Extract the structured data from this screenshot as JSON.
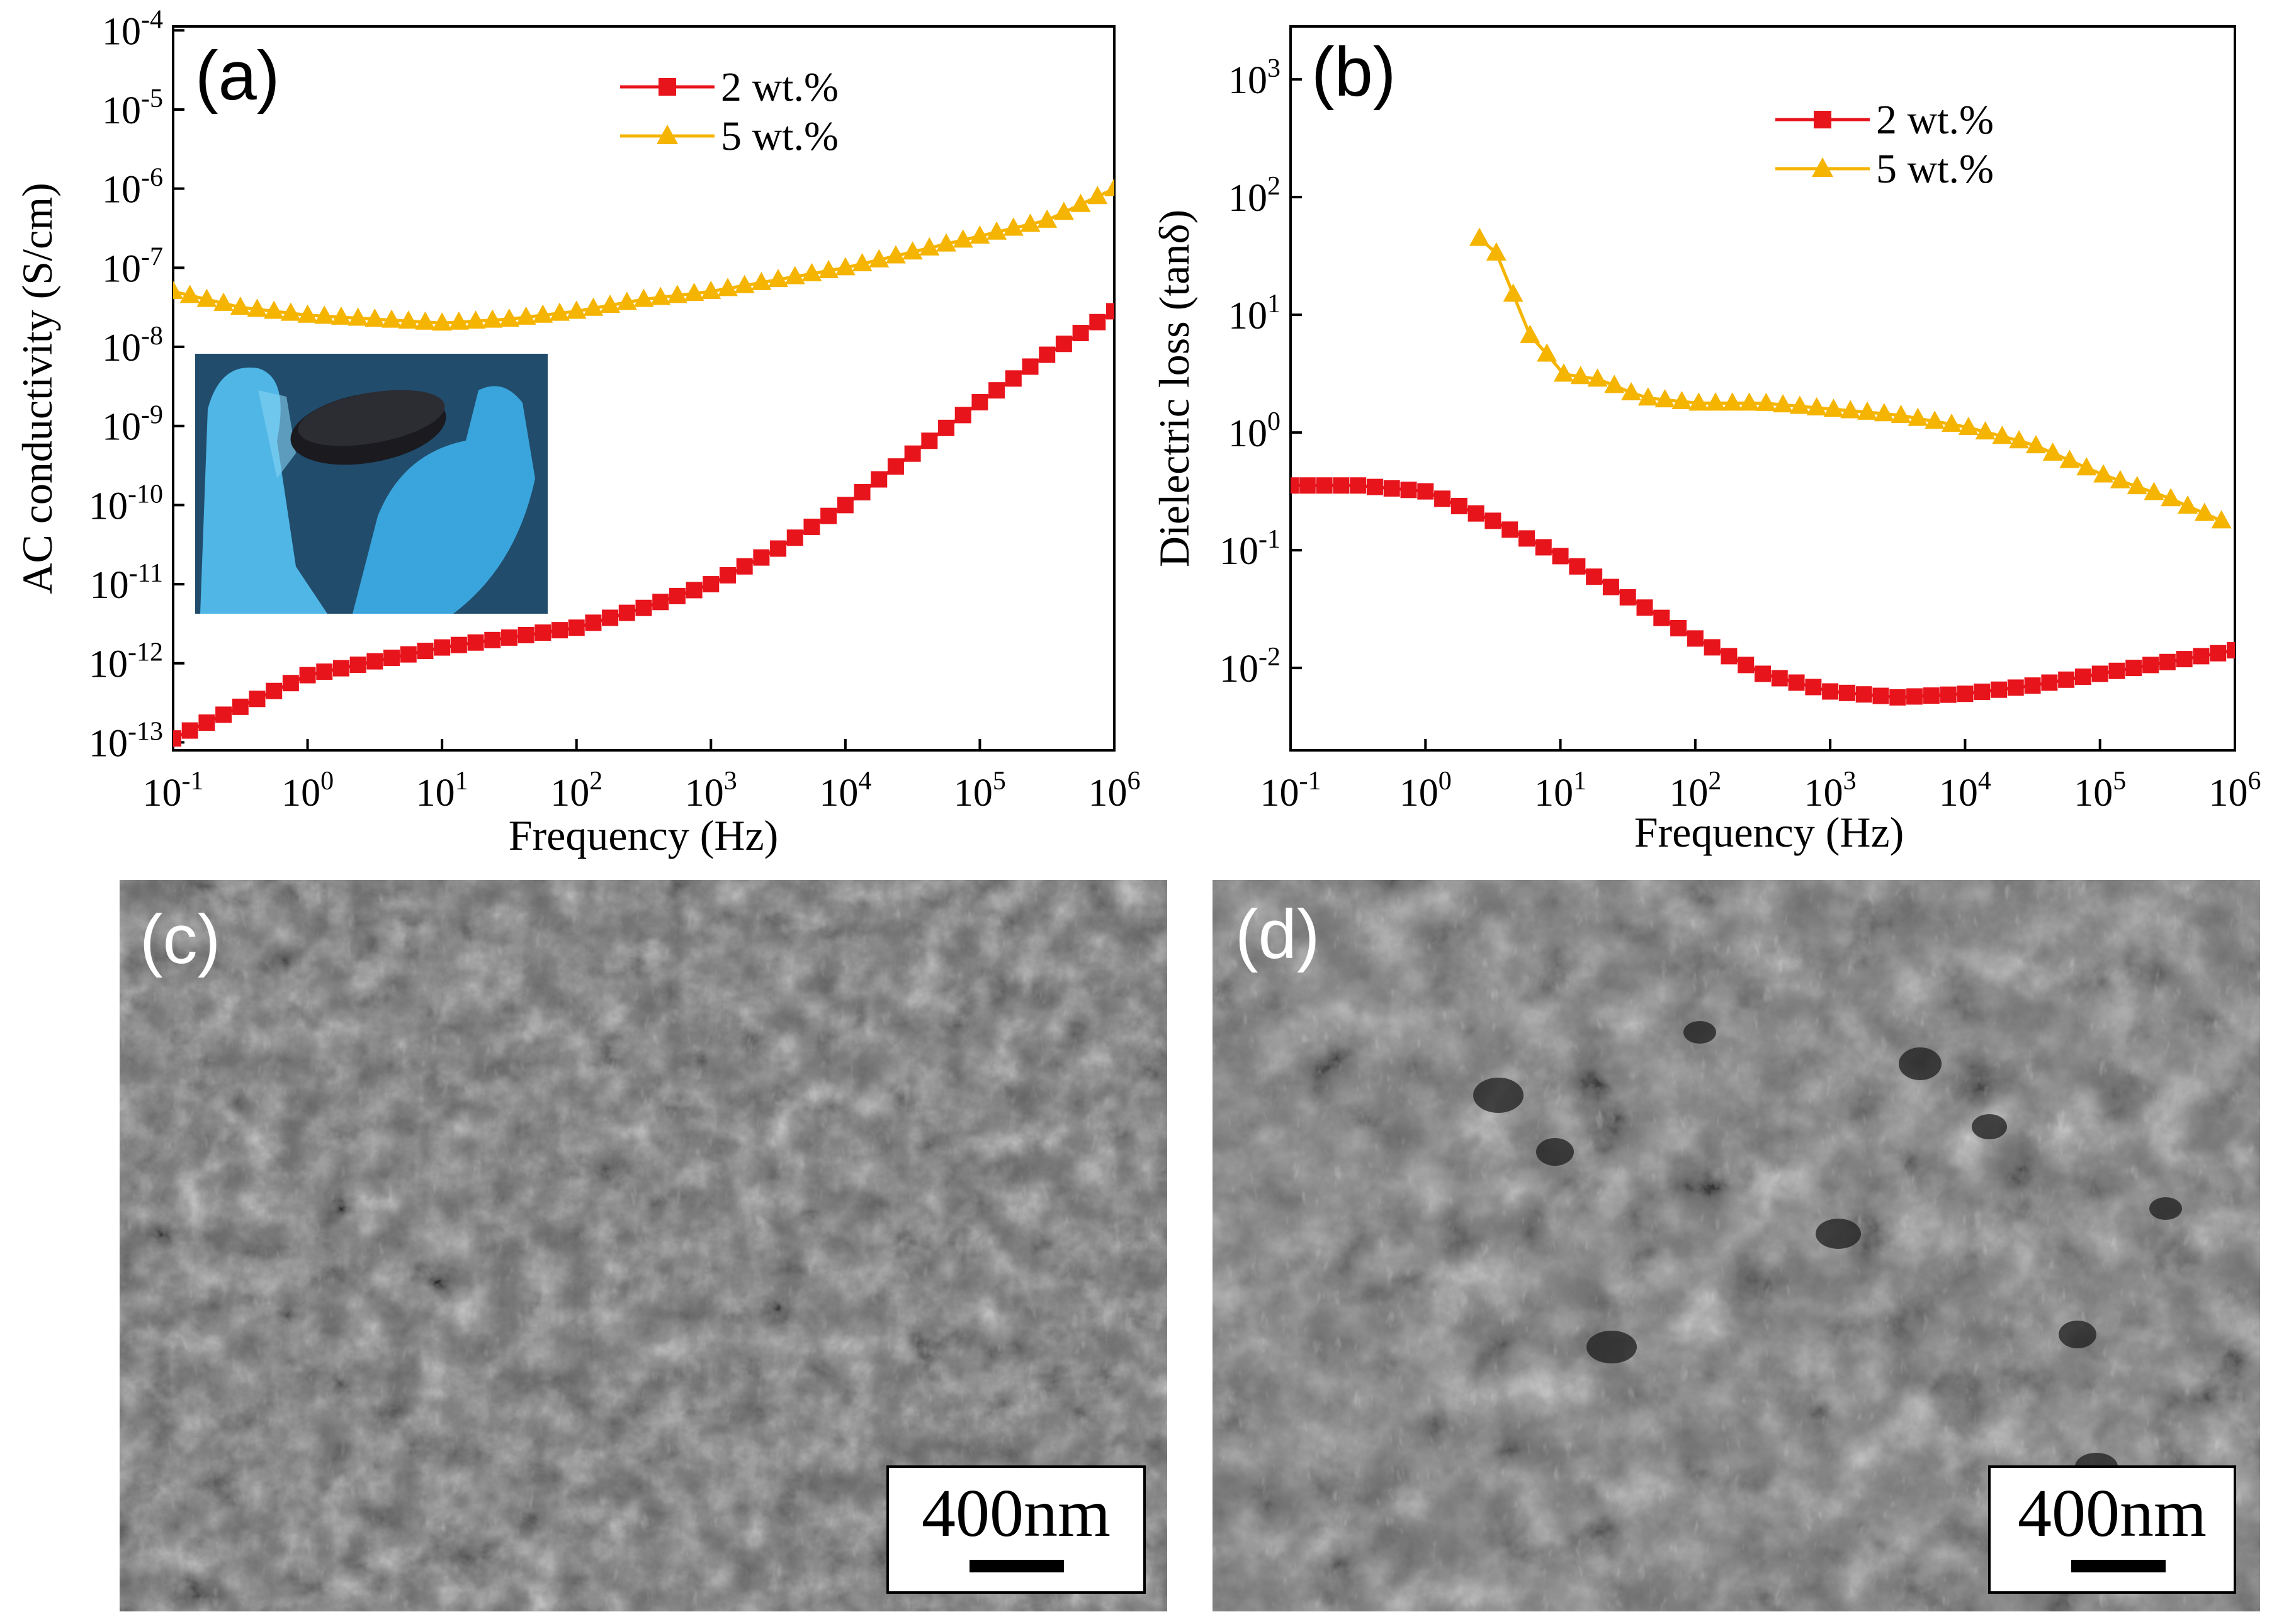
{
  "chart_data": [
    {
      "panel": "(a)",
      "type": "line",
      "xscale": "log",
      "yscale": "log",
      "xlabel": "Frequency (Hz)",
      "ylabel": "AC conductivity (S/cm)",
      "x_ticks": [
        -1,
        0,
        1,
        2,
        3,
        4,
        5,
        6
      ],
      "y_ticks": [
        -13,
        -12,
        -11,
        -10,
        -9,
        -8,
        -7,
        -6,
        -5,
        -4
      ],
      "xlim_exp": [
        -1,
        6
      ],
      "ylim_exp": [
        -13.1,
        -3.95
      ],
      "legend_position": "top-center",
      "series": [
        {
          "name": "2 wt.%",
          "color": "#e8141c",
          "marker": "square",
          "x_log": [
            -1,
            0,
            1,
            2,
            2.5,
            3,
            3.5,
            4,
            4.5,
            5,
            5.5,
            6
          ],
          "y_log": [
            -12.95,
            -12.15,
            -11.8,
            -11.55,
            -11.3,
            -11.0,
            -10.55,
            -10.0,
            -9.35,
            -8.7,
            -8.1,
            -7.55
          ]
        },
        {
          "name": "5 wt.%",
          "color": "#f5b400",
          "marker": "triangle",
          "x_log": [
            -1,
            -0.5,
            0,
            0.5,
            1,
            1.5,
            2,
            2.5,
            3,
            3.5,
            4,
            4.5,
            5,
            5.5,
            6
          ],
          "y_log": [
            -7.3,
            -7.5,
            -7.6,
            -7.65,
            -7.7,
            -7.65,
            -7.55,
            -7.4,
            -7.3,
            -7.15,
            -7.0,
            -6.8,
            -6.6,
            -6.4,
            -6.0
          ]
        }
      ]
    },
    {
      "panel": "(b)",
      "type": "line",
      "xscale": "log",
      "yscale": "log",
      "xlabel": "Frequency (Hz)",
      "ylabel": "Dielectric loss (tanδ)",
      "x_ticks": [
        -1,
        0,
        1,
        2,
        3,
        4,
        5,
        6
      ],
      "y_ticks": [
        -2,
        -1,
        0,
        1,
        2,
        3
      ],
      "xlim_exp": [
        -1,
        6
      ],
      "ylim_exp": [
        -2.7,
        3.45
      ],
      "legend_position": "top-right",
      "series": [
        {
          "name": "2 wt.%",
          "color": "#e8141c",
          "marker": "square",
          "x_log": [
            -1,
            -0.5,
            0,
            0.5,
            1,
            1.5,
            2,
            2.5,
            3,
            3.5,
            4,
            4.5,
            5,
            5.5,
            6
          ],
          "y_log": [
            -0.45,
            -0.45,
            -0.5,
            -0.75,
            -1.05,
            -1.4,
            -1.75,
            -2.05,
            -2.2,
            -2.25,
            -2.22,
            -2.15,
            -2.05,
            -1.95,
            -1.85
          ]
        },
        {
          "name": "5 wt.%",
          "color": "#f5b400",
          "marker": "triangle",
          "x_log": [
            0.4,
            0.6,
            0.7,
            0.85,
            1,
            1.3,
            1.6,
            2,
            2.5,
            3,
            3.5,
            4,
            4.5,
            5,
            5.5,
            6
          ],
          "y_log": [
            1.65,
            1.45,
            0.9,
            0.75,
            0.5,
            0.45,
            0.3,
            0.25,
            0.25,
            0.2,
            0.15,
            0.05,
            -0.1,
            -0.35,
            -0.55,
            -0.8
          ]
        }
      ]
    }
  ],
  "images": {
    "inset_photo": "black composite disc held between gloved fingers",
    "panel_c": {
      "label": "(c)",
      "scale_bar": "400nm"
    },
    "panel_d": {
      "label": "(d)",
      "scale_bar": "400nm"
    }
  }
}
